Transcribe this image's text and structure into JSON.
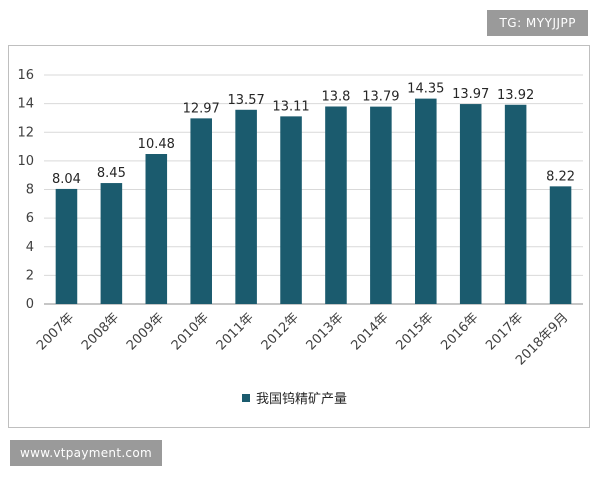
{
  "watermark_top": "TG: MYYJJPP",
  "watermark_bottom": "www.vtpayment.com",
  "chart_data": {
    "type": "bar",
    "categories": [
      "2007年",
      "2008年",
      "2009年",
      "2010年",
      "2011年",
      "2012年",
      "2013年",
      "2014年",
      "2015年",
      "2016年",
      "2017年",
      "2018年9月"
    ],
    "series": [
      {
        "name": "我国钨精矿产量",
        "values": [
          8.04,
          8.45,
          10.48,
          12.97,
          13.57,
          13.11,
          13.8,
          13.79,
          14.35,
          13.97,
          13.92,
          8.22
        ]
      }
    ],
    "data_labels": [
      "8.04",
      "8.45",
      "10.48",
      "12.97",
      "13.57",
      "13.11",
      "13.8",
      "13.79",
      "14.35",
      "13.97",
      "13.92",
      "8.22"
    ],
    "yticks": [
      "0",
      "2",
      "4",
      "6",
      "8",
      "10",
      "12",
      "14",
      "16"
    ],
    "ylim": [
      0,
      16
    ],
    "grid": true,
    "legend_position": "bottom",
    "bar_color": "#1b5b6e"
  }
}
